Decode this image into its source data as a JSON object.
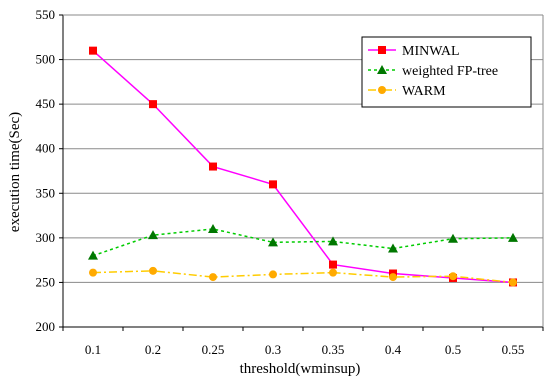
{
  "chart_data": {
    "type": "line",
    "xlabel": "threshold(wminsup)",
    "ylabel": "execution time(Sec)",
    "categories": [
      "0.1",
      "0.2",
      "0.25",
      "0.3",
      "0.35",
      "0.4",
      "0.5",
      "0.55"
    ],
    "ylim": [
      200,
      550
    ],
    "yticks": [
      200,
      250,
      300,
      350,
      400,
      450,
      500,
      550
    ],
    "grid": true,
    "legend_position": "top-right",
    "series": [
      {
        "name": "MINWAL",
        "color": "#ff00ff",
        "marker_color": "#ff0000",
        "marker": "square",
        "line_style": "solid",
        "values": [
          510,
          450,
          380,
          360,
          270,
          260,
          255,
          250
        ]
      },
      {
        "name": "weighted FP-tree",
        "color": "#00cc00",
        "marker_color": "#007700",
        "marker": "triangle",
        "line_style": "dotted",
        "values": [
          280,
          303,
          310,
          295,
          296,
          288,
          299,
          300
        ]
      },
      {
        "name": "WARM",
        "color": "#ffcc00",
        "marker_color": "#ffaa00",
        "marker": "circle",
        "line_style": "dashdot",
        "values": [
          261,
          263,
          256,
          259,
          261,
          256,
          257,
          250
        ]
      }
    ]
  }
}
